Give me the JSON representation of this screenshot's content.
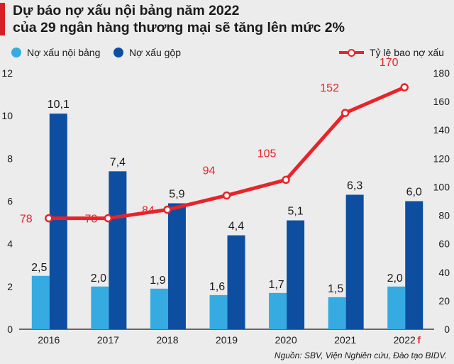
{
  "chart_data": {
    "type": "bar",
    "title_line1": "Dự báo nợ xấu nội bảng năm 2022",
    "title_line2": "của 29 ngân hàng thương mại sẽ tăng lên mức 2%",
    "categories": [
      "2016",
      "2017",
      "2018",
      "2019",
      "2020",
      "2021",
      "2022"
    ],
    "forecast_marker": "f",
    "series": [
      {
        "name": "Nợ xấu nội bảng",
        "type": "bar",
        "axis": "left",
        "color": "#35abe2",
        "values": [
          2.5,
          2.0,
          1.9,
          1.6,
          1.7,
          1.5,
          2.0
        ],
        "labels": [
          "2,5",
          "2,0",
          "1,9",
          "1,6",
          "1,7",
          "1,5",
          "2,0"
        ]
      },
      {
        "name": "Nợ xấu gộp",
        "type": "bar",
        "axis": "left",
        "color": "#0d4ea1",
        "values": [
          10.1,
          7.4,
          5.9,
          4.4,
          5.1,
          6.3,
          6.0
        ],
        "labels": [
          "10,1",
          "7,4",
          "5,9",
          "4,4",
          "5,1",
          "6,3",
          "6,0"
        ]
      },
      {
        "name": "Tỷ lệ bao nợ xấu",
        "type": "line",
        "axis": "right",
        "color": "#e8232a",
        "values": [
          78,
          78,
          84,
          94,
          105,
          152,
          170
        ],
        "labels": [
          "78",
          "78",
          "84",
          "94",
          "105",
          "152",
          "170"
        ]
      }
    ],
    "left_axis": {
      "min": 0,
      "max": 12,
      "ticks": [
        "0",
        "2",
        "4",
        "6",
        "8",
        "10",
        "12"
      ]
    },
    "right_axis": {
      "min": 0,
      "max": 180,
      "ticks": [
        "0",
        "20",
        "40",
        "60",
        "80",
        "100",
        "120",
        "140",
        "160",
        "180"
      ]
    },
    "grid": false
  },
  "source": "Nguồn: SBV, Viện Nghiên cứu, Đào tạo BIDV."
}
